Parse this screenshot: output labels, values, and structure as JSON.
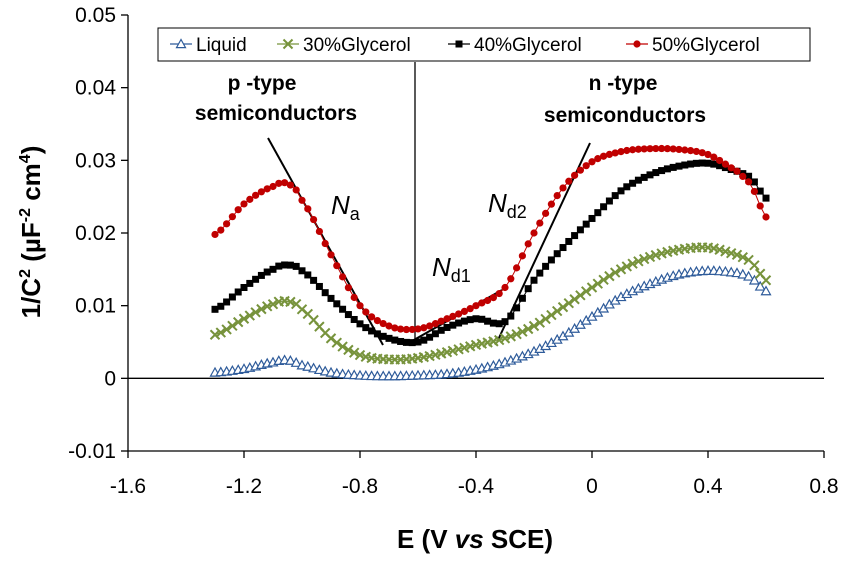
{
  "chart_data": {
    "type": "scatter",
    "xlabel": {
      "main": "E (V ",
      "italic": "vs",
      "tail": " SCE)"
    },
    "ylabel": {
      "a": "1/C",
      "b": "2",
      "c": " (µF",
      "d": "-2",
      "e": " cm",
      "f": "4",
      "g": ")"
    },
    "xlim": [
      -1.6,
      0.8
    ],
    "ylim": [
      -0.01,
      0.05
    ],
    "x_ticks": [
      "-1.6",
      "-1.2",
      "-0.8",
      "-0.4",
      "0",
      "0.4",
      "0.8"
    ],
    "y_ticks": [
      "-0.01",
      "0",
      "0.01",
      "0.02",
      "0.03",
      "0.04",
      "0.05"
    ],
    "legend_position": "top",
    "x": [
      -1.3,
      -1.2,
      -1.1,
      -1.05,
      -1.0,
      -0.9,
      -0.8,
      -0.7,
      -0.6,
      -0.5,
      -0.4,
      -0.3,
      -0.2,
      -0.1,
      0.0,
      0.1,
      0.2,
      0.3,
      0.4,
      0.5,
      0.55,
      0.6
    ],
    "series": [
      {
        "name": "Liquid",
        "color": "#2e5b9a",
        "marker": "triangle",
        "values": [
          0.0008,
          0.0013,
          0.0022,
          0.0025,
          0.0018,
          0.0008,
          0.0004,
          0.0003,
          0.0004,
          0.0006,
          0.0012,
          0.0022,
          0.0037,
          0.0058,
          0.0085,
          0.0112,
          0.013,
          0.0143,
          0.0148,
          0.0145,
          0.0138,
          0.012
        ]
      },
      {
        "name": "30%Glycerol",
        "color": "#77933c",
        "marker": "x",
        "values": [
          0.006,
          0.0082,
          0.0102,
          0.0106,
          0.0095,
          0.0055,
          0.0032,
          0.0026,
          0.0028,
          0.0036,
          0.0046,
          0.0055,
          0.0072,
          0.0098,
          0.0125,
          0.015,
          0.0167,
          0.0177,
          0.018,
          0.017,
          0.016,
          0.0135
        ]
      },
      {
        "name": "40%Glycerol",
        "color": "#000000",
        "marker": "square",
        "values": [
          0.0095,
          0.0125,
          0.015,
          0.0156,
          0.0148,
          0.011,
          0.0075,
          0.0055,
          0.005,
          0.007,
          0.0082,
          0.0078,
          0.0135,
          0.018,
          0.022,
          0.0258,
          0.028,
          0.0292,
          0.0296,
          0.0285,
          0.0275,
          0.0248
        ]
      },
      {
        "name": "50%Glycerol",
        "color": "#c00000",
        "marker": "circle",
        "values": [
          0.0198,
          0.024,
          0.0264,
          0.0268,
          0.0245,
          0.017,
          0.01,
          0.0072,
          0.0068,
          0.0082,
          0.01,
          0.0125,
          0.02,
          0.0262,
          0.0298,
          0.0312,
          0.0316,
          0.0315,
          0.0308,
          0.0285,
          0.0265,
          0.0222
        ]
      }
    ],
    "annotations": {
      "p_type_l1": "p -type",
      "p_type_l2": "semiconductors",
      "n_type_l1": "n -type",
      "n_type_l2": "semiconductors",
      "na_main": "N",
      "na_sub": "a",
      "nd1_main": "N",
      "nd1_sub": "d1",
      "nd2_main": "N",
      "nd2_sub": "d2"
    }
  }
}
